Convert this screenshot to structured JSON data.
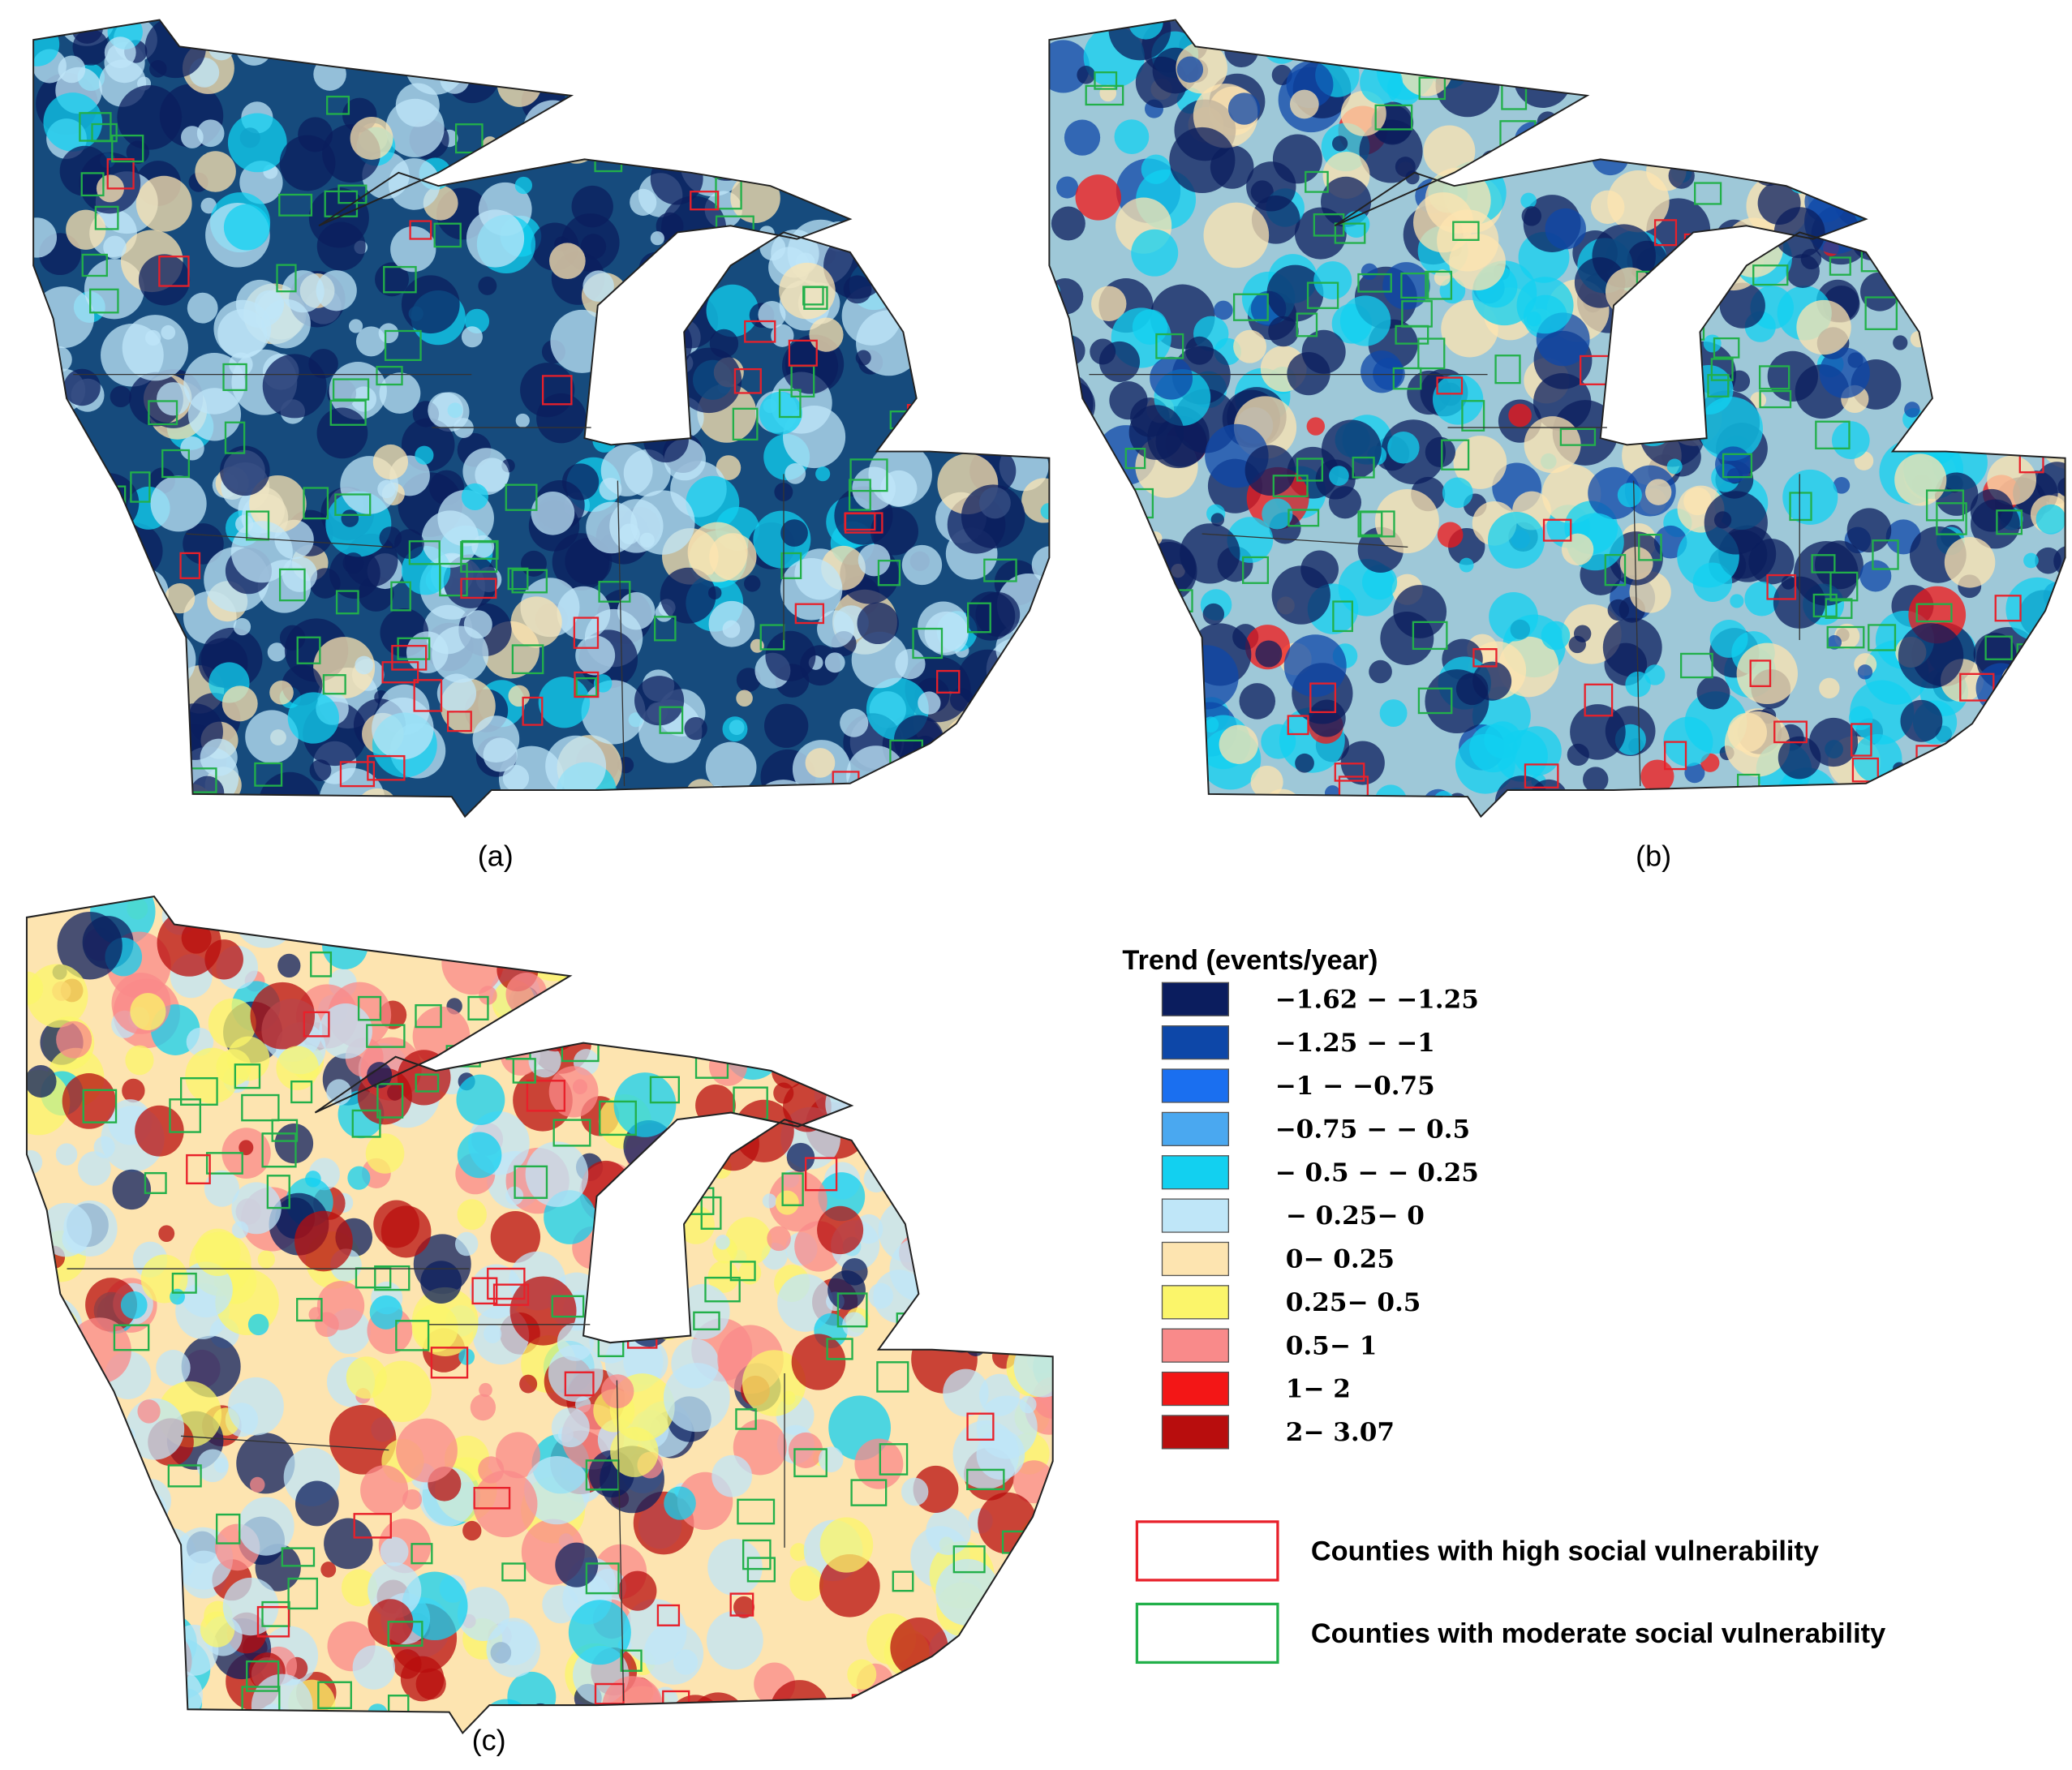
{
  "panels": [
    {
      "label": "(a)"
    },
    {
      "label": "(b)"
    },
    {
      "label": "(c)"
    }
  ],
  "legend": {
    "title": "Trend (events/year)",
    "classes": [
      {
        "label": "−1.62 − −1.25",
        "color": "#0b1d5e"
      },
      {
        "label": "−1.25 − −1",
        "color": "#0d47a8"
      },
      {
        "label": "−1 − −0.75",
        "color": "#1a6ff0"
      },
      {
        "label": "−0.75 − − 0.5",
        "color": "#4aa8f0"
      },
      {
        "label": "− 0.5 − − 0.25",
        "color": "#12d0f0"
      },
      {
        "label": "− 0.25− 0",
        "color": "#bfe6f8"
      },
      {
        "label": "0− 0.25",
        "color": "#fde4b0"
      },
      {
        "label": "0.25− 0.5",
        "color": "#fbf56a"
      },
      {
        "label": "0.5− 1",
        "color": "#f98a8a"
      },
      {
        "label": "1− 2",
        "color": "#f31616"
      },
      {
        "label": "2− 3.07",
        "color": "#b80d0d"
      }
    ],
    "outlines": [
      {
        "label": "Counties with high social vulnerability",
        "color": "#e8202a"
      },
      {
        "label": "Counties with moderate social vulnerability",
        "color": "#22b04a"
      }
    ]
  }
}
